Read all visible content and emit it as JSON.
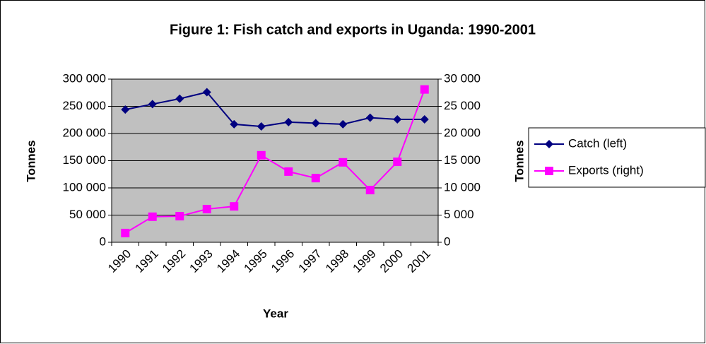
{
  "chart_data": {
    "type": "line",
    "title": "Figure 1:  Fish catch and exports in Uganda: 1990-2001",
    "xlabel": "Year",
    "ylabel": "Tonnes",
    "y2label": "Tonnes",
    "categories": [
      "1990",
      "1991",
      "1992",
      "1993",
      "1994",
      "1995",
      "1996",
      "1997",
      "1998",
      "1999",
      "2000",
      "2001"
    ],
    "series": [
      {
        "name": "Catch (left)",
        "color": "#000080",
        "marker": "diamond",
        "values": [
          244000,
          254000,
          264000,
          276000,
          217000,
          213000,
          221000,
          219000,
          217000,
          229000,
          226000,
          226000
        ]
      },
      {
        "name": "Exports (right)",
        "color": "#ff00ff",
        "marker": "square",
        "axis": "y2",
        "values": [
          1700,
          4700,
          4800,
          6100,
          6600,
          16000,
          13000,
          11800,
          14700,
          9600,
          14800,
          28100
        ]
      }
    ],
    "ylim": [
      0,
      300000
    ],
    "yticks": [
      0,
      {
        "value": 50000,
        "label": "50 000"
      },
      {
        "value": 100000,
        "label": "100 000"
      },
      {
        "value": 150000,
        "label": "150 000"
      },
      {
        "value": 200000,
        "label": "200 000"
      },
      {
        "value": 250000,
        "label": "250 000"
      },
      {
        "value": 300000,
        "label": "300 000"
      }
    ],
    "y2lim": [
      0,
      30000
    ],
    "y2ticks": [
      0,
      {
        "value": 5000,
        "label": "5 000"
      },
      {
        "value": 10000,
        "label": "10 000"
      },
      {
        "value": 15000,
        "label": "15 000"
      },
      {
        "value": 20000,
        "label": "20 000"
      },
      {
        "value": 25000,
        "label": "25 000"
      },
      {
        "value": 30000,
        "label": "30 000"
      }
    ],
    "grid": true,
    "legend": "right",
    "plot_background": "#c0c0c0"
  }
}
